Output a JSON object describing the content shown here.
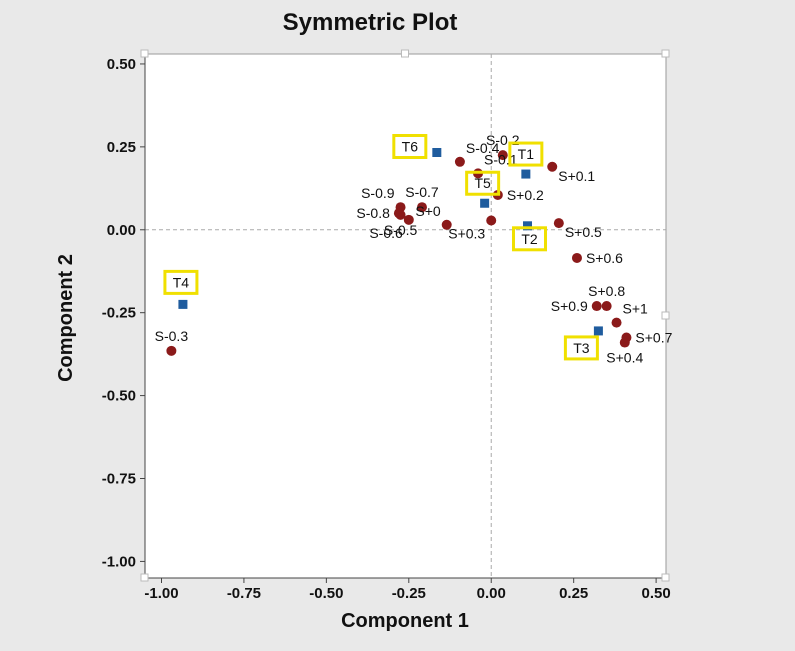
{
  "chart_data": {
    "type": "scatter",
    "title": "Symmetric Plot",
    "xlabel": "Component 1",
    "ylabel": "Component 2",
    "xlim": [
      -1.05,
      0.53
    ],
    "ylim": [
      -1.05,
      0.53
    ],
    "xticks": [
      -1.0,
      -0.75,
      -0.5,
      -0.25,
      0.0,
      0.25,
      0.5
    ],
    "xtick_labels": [
      "-1.00",
      "-0.75",
      "-0.50",
      "-0.25",
      "0.00",
      "0.25",
      "0.50"
    ],
    "yticks": [
      0.5,
      0.25,
      0.0,
      -0.25,
      -0.5,
      -0.75,
      -1.0
    ],
    "ytick_labels": [
      "0.50",
      "0.25",
      "0.00",
      "-0.25",
      "-0.50",
      "-0.75",
      "-1.00"
    ],
    "reference_lines": {
      "x": 0,
      "y": 0,
      "style": "dashed",
      "color": "#aaaaaa"
    },
    "colors": {
      "row_points": "#8b1a1a",
      "column_points": "#1f5c9e",
      "highlight_box": "#f0e000",
      "plot_bg": "#ffffff",
      "figure_bg": "#e9e9e9"
    },
    "row_points": [
      {
        "label": "S-0.4",
        "x": -0.095,
        "y": 0.205,
        "label_pos": "above-right"
      },
      {
        "label": "S-0.2",
        "x": 0.035,
        "y": 0.225,
        "label_pos": "above"
      },
      {
        "label": "S-0.1",
        "x": -0.04,
        "y": 0.17,
        "label_pos": "above-right"
      },
      {
        "label": "S+0.1",
        "x": 0.185,
        "y": 0.19,
        "label_pos": "below-right"
      },
      {
        "label": "S-0.9",
        "x": -0.275,
        "y": 0.068,
        "label_pos": "above-left"
      },
      {
        "label": "S-0.7",
        "x": -0.21,
        "y": 0.068,
        "label_pos": "above"
      },
      {
        "label": "S-0.8",
        "x": -0.28,
        "y": 0.05,
        "label_pos": "left"
      },
      {
        "label": "S+0",
        "x": -0.135,
        "y": 0.015,
        "label_pos": "above-left"
      },
      {
        "label": "S+0.2",
        "x": 0.02,
        "y": 0.105,
        "label_pos": "right"
      },
      {
        "label": "S-0.6",
        "x": -0.25,
        "y": 0.03,
        "label_pos": "below-left"
      },
      {
        "label": "S-0.5",
        "x": -0.275,
        "y": 0.045,
        "label_pos": "below"
      },
      {
        "label": "S+0.3",
        "x": 0.0,
        "y": 0.028,
        "label_pos": "below-left"
      },
      {
        "label": "S+0.5",
        "x": 0.205,
        "y": 0.02,
        "label_pos": "below-right"
      },
      {
        "label": "S+0.6",
        "x": 0.26,
        "y": -0.085,
        "label_pos": "right"
      },
      {
        "label": "S+0.8",
        "x": 0.35,
        "y": -0.23,
        "label_pos": "above"
      },
      {
        "label": "S+0.9",
        "x": 0.32,
        "y": -0.23,
        "label_pos": "left"
      },
      {
        "label": "S+1",
        "x": 0.38,
        "y": -0.28,
        "label_pos": "above-right"
      },
      {
        "label": "S+0.7",
        "x": 0.41,
        "y": -0.325,
        "label_pos": "right"
      },
      {
        "label": "S+0.4",
        "x": 0.405,
        "y": -0.34,
        "label_pos": "below"
      },
      {
        "label": "S-0.3",
        "x": -0.97,
        "y": -0.365,
        "label_pos": "above"
      }
    ],
    "column_points": [
      {
        "label": "T1",
        "x": 0.105,
        "y": 0.168
      },
      {
        "label": "T2",
        "x": 0.11,
        "y": 0.012
      },
      {
        "label": "T3",
        "x": 0.325,
        "y": -0.305
      },
      {
        "label": "T4",
        "x": -0.935,
        "y": -0.225
      },
      {
        "label": "T5",
        "x": -0.02,
        "y": 0.08
      },
      {
        "label": "T6",
        "x": -0.165,
        "y": 0.233
      }
    ]
  }
}
